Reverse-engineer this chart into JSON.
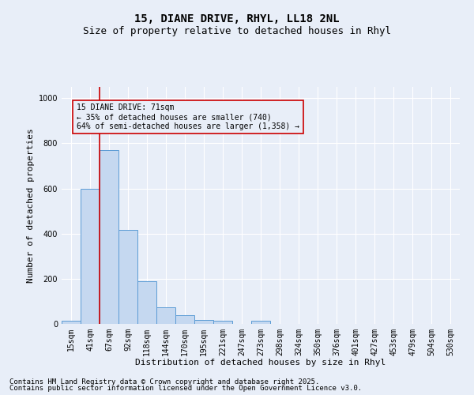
{
  "title": "15, DIANE DRIVE, RHYL, LL18 2NL",
  "subtitle": "Size of property relative to detached houses in Rhyl",
  "xlabel": "Distribution of detached houses by size in Rhyl",
  "ylabel": "Number of detached properties",
  "categories": [
    "15sqm",
    "41sqm",
    "67sqm",
    "92sqm",
    "118sqm",
    "144sqm",
    "170sqm",
    "195sqm",
    "221sqm",
    "247sqm",
    "273sqm",
    "298sqm",
    "324sqm",
    "350sqm",
    "376sqm",
    "401sqm",
    "427sqm",
    "453sqm",
    "479sqm",
    "504sqm",
    "530sqm"
  ],
  "values": [
    13,
    600,
    770,
    415,
    190,
    75,
    37,
    18,
    14,
    0,
    13,
    0,
    0,
    0,
    0,
    0,
    0,
    0,
    0,
    0,
    0
  ],
  "bar_color": "#c5d8f0",
  "bar_edge_color": "#5b9bd5",
  "bg_color": "#e8eef8",
  "grid_color": "#ffffff",
  "vline_x": 1.5,
  "vline_color": "#cc0000",
  "annotation_text": "15 DIANE DRIVE: 71sqm\n← 35% of detached houses are smaller (740)\n64% of semi-detached houses are larger (1,358) →",
  "annotation_box_color": "#cc0000",
  "footer_line1": "Contains HM Land Registry data © Crown copyright and database right 2025.",
  "footer_line2": "Contains public sector information licensed under the Open Government Licence v3.0.",
  "ylim": [
    0,
    1050
  ],
  "yticks": [
    0,
    200,
    400,
    600,
    800,
    1000
  ],
  "title_fontsize": 10,
  "subtitle_fontsize": 9,
  "axis_label_fontsize": 8,
  "tick_fontsize": 7,
  "footer_fontsize": 6.5,
  "annot_fontsize": 7
}
